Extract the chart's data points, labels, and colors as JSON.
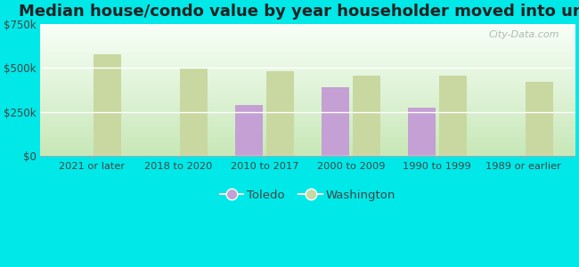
{
  "title": "Median house/condo value by year householder moved into unit",
  "categories": [
    "2021 or later",
    "2018 to 2020",
    "2010 to 2017",
    "2000 to 2009",
    "1990 to 1999",
    "1989 or earlier"
  ],
  "toledo": [
    null,
    null,
    290000,
    390000,
    275000,
    null
  ],
  "washington": [
    575000,
    500000,
    480000,
    455000,
    455000,
    420000
  ],
  "toledo_color": "#c4a0d4",
  "washington_color": "#c8d8a0",
  "bg_top": "#f5fff5",
  "bg_bottom": "#d8f0d0",
  "outer_bg": "#00e8e8",
  "ylim": [
    0,
    750000
  ],
  "yticks": [
    0,
    250000,
    500000,
    750000
  ],
  "ytick_labels": [
    "$0",
    "$250k",
    "$500k",
    "$750k"
  ],
  "title_fontsize": 13,
  "bar_width": 0.32,
  "legend_toledo": "Toledo",
  "legend_washington": "Washington"
}
